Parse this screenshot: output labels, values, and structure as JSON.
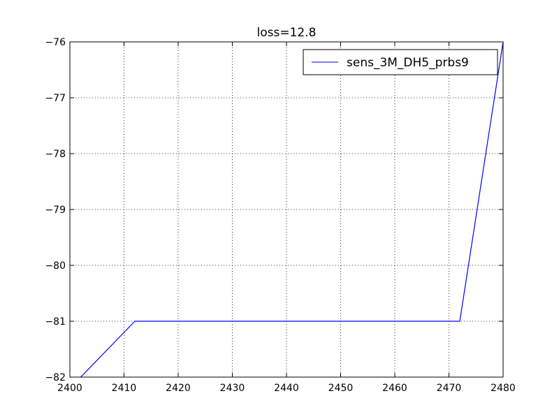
{
  "chart_data": {
    "type": "line",
    "title": "loss=12.8",
    "xlabel": "",
    "ylabel": "",
    "xlim": [
      2400,
      2480
    ],
    "ylim": [
      -82,
      -76
    ],
    "xticks": [
      2400,
      2410,
      2420,
      2430,
      2440,
      2450,
      2460,
      2470,
      2480
    ],
    "yticks": [
      -76,
      -77,
      -78,
      -79,
      -80,
      -81,
      -82
    ],
    "xtick_labels": [
      "2400",
      "2410",
      "2420",
      "2430",
      "2440",
      "2450",
      "2460",
      "2470",
      "2480"
    ],
    "ytick_labels": [
      "−76",
      "−77",
      "−78",
      "−79",
      "−80",
      "−81",
      "−82"
    ],
    "grid": true,
    "legend_position": "top-right",
    "series": [
      {
        "name": "sens_3M_DH5_prbs9",
        "color": "#0000ff",
        "x": [
          2402,
          2412,
          2472,
          2480
        ],
        "y": [
          -82,
          -81,
          -81,
          -76
        ]
      }
    ]
  }
}
